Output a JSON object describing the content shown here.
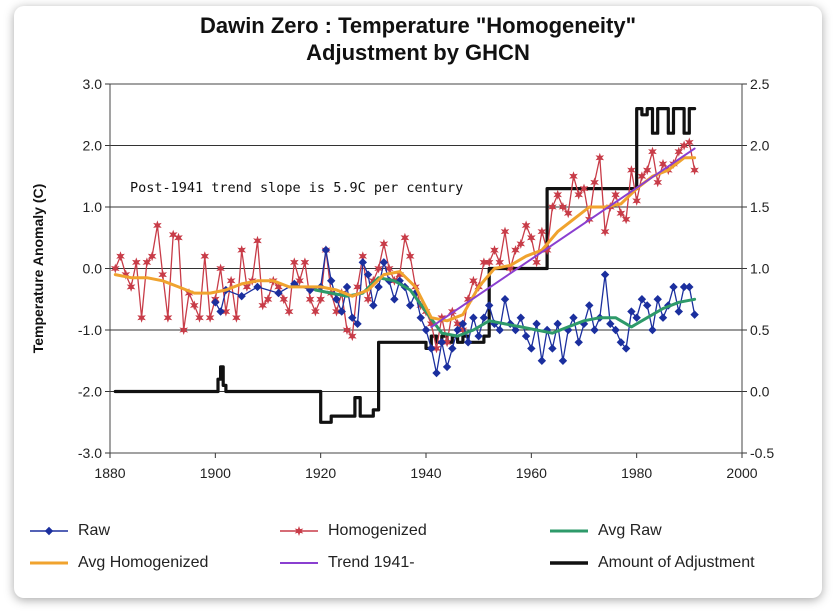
{
  "chart_data": {
    "type": "line",
    "title": "Dawin Zero  :  Temperature \"Homogeneity\"\nAdjustment by GHCN",
    "ylabel": "Temperature Anomaly (C)",
    "xlim": [
      1880,
      2000
    ],
    "x_ticks": [
      "1880",
      "1900",
      "1920",
      "1940",
      "1960",
      "1980",
      "2000"
    ],
    "ylim": [
      -3.0,
      3.0
    ],
    "y_ticks": [
      "-3.0",
      "-2.0",
      "-1.0",
      "0.0",
      "1.0",
      "2.0",
      "3.0"
    ],
    "y2lim": [
      -0.5,
      2.5
    ],
    "y2_ticks": [
      "-0.5",
      "0.0",
      "0.5",
      "1.0",
      "1.5",
      "2.0",
      "2.5"
    ],
    "grid": "horizontal",
    "annotation": "Post-1941 trend slope is 5.9C per century",
    "legend_position": "bottom",
    "series": [
      {
        "name": "Raw",
        "color": "#1b2f9e",
        "marker": "diamond",
        "axis": "left",
        "x": [
          1900,
          1901,
          1902,
          1905,
          1908,
          1912,
          1915,
          1918,
          1920,
          1921,
          1922,
          1923,
          1924,
          1925,
          1926,
          1927,
          1928,
          1929,
          1930,
          1931,
          1932,
          1933,
          1934,
          1935,
          1936,
          1937,
          1938,
          1939,
          1940,
          1941,
          1942,
          1943,
          1944,
          1945,
          1946,
          1947,
          1948,
          1949,
          1950,
          1951,
          1952,
          1953,
          1954,
          1955,
          1956,
          1957,
          1958,
          1959,
          1960,
          1961,
          1962,
          1963,
          1964,
          1965,
          1966,
          1967,
          1968,
          1969,
          1970,
          1971,
          1972,
          1973,
          1974,
          1975,
          1976,
          1977,
          1978,
          1979,
          1980,
          1981,
          1982,
          1983,
          1984,
          1985,
          1986,
          1987,
          1988,
          1989,
          1990,
          1991
        ],
        "y": [
          -0.55,
          -0.7,
          -0.35,
          -0.45,
          -0.3,
          -0.4,
          -0.25,
          -0.35,
          -0.3,
          0.3,
          -0.2,
          -0.5,
          -0.7,
          -0.3,
          -0.8,
          -0.9,
          0.1,
          -0.1,
          -0.6,
          -0.3,
          0.1,
          -0.2,
          -0.5,
          -0.2,
          -0.3,
          -0.6,
          -0.4,
          -0.8,
          -1.0,
          -1.3,
          -1.7,
          -1.2,
          -1.6,
          -1.3,
          -1.0,
          -0.9,
          -1.2,
          -0.8,
          -1.1,
          -0.8,
          -0.6,
          -0.9,
          -1.0,
          -0.5,
          -0.9,
          -1.0,
          -0.8,
          -1.1,
          -1.3,
          -0.9,
          -1.5,
          -1.0,
          -1.3,
          -0.9,
          -1.5,
          -1.0,
          -0.8,
          -1.2,
          -0.9,
          -0.6,
          -1.0,
          -0.8,
          -0.1,
          -0.9,
          -1.0,
          -1.2,
          -1.3,
          -0.7,
          -0.8,
          -0.5,
          -0.6,
          -1.0,
          -0.5,
          -0.8,
          -0.6,
          -0.3,
          -0.7,
          -0.3,
          -0.3,
          -0.75
        ]
      },
      {
        "name": "Homogenized",
        "color": "#c83c48",
        "marker": "star",
        "axis": "left",
        "x": [
          1881,
          1882,
          1883,
          1884,
          1885,
          1886,
          1887,
          1888,
          1889,
          1890,
          1891,
          1892,
          1893,
          1894,
          1895,
          1896,
          1897,
          1898,
          1899,
          1900,
          1901,
          1902,
          1903,
          1904,
          1905,
          1906,
          1907,
          1908,
          1909,
          1910,
          1911,
          1912,
          1913,
          1914,
          1915,
          1916,
          1917,
          1918,
          1919,
          1920,
          1921,
          1922,
          1923,
          1924,
          1925,
          1926,
          1927,
          1928,
          1929,
          1930,
          1931,
          1932,
          1933,
          1934,
          1935,
          1936,
          1937,
          1938,
          1939,
          1940,
          1941,
          1942,
          1943,
          1944,
          1945,
          1946,
          1947,
          1948,
          1949,
          1950,
          1951,
          1952,
          1953,
          1954,
          1955,
          1956,
          1957,
          1958,
          1959,
          1960,
          1961,
          1962,
          1963,
          1964,
          1965,
          1966,
          1967,
          1968,
          1969,
          1970,
          1971,
          1972,
          1973,
          1974,
          1975,
          1976,
          1977,
          1978,
          1979,
          1980,
          1981,
          1982,
          1983,
          1984,
          1985,
          1986,
          1987,
          1988,
          1989,
          1990,
          1991
        ],
        "y": [
          0.0,
          0.2,
          -0.1,
          -0.3,
          0.1,
          -0.8,
          0.1,
          0.2,
          0.7,
          -0.1,
          -0.8,
          0.55,
          0.5,
          -1.0,
          -0.4,
          -0.6,
          -0.8,
          0.2,
          -0.8,
          -0.5,
          0.0,
          -0.7,
          -0.2,
          -0.8,
          0.3,
          -0.3,
          -0.2,
          0.45,
          -0.6,
          -0.5,
          -0.2,
          -0.3,
          -0.5,
          -0.7,
          0.1,
          -0.2,
          0.1,
          -0.5,
          -0.7,
          -0.5,
          0.3,
          -0.4,
          -0.7,
          -0.4,
          -1.0,
          -1.1,
          -0.3,
          0.2,
          -0.5,
          -0.2,
          0.0,
          0.4,
          0.0,
          -0.2,
          -0.1,
          0.5,
          0.2,
          -0.3,
          -0.6,
          -0.7,
          -0.9,
          -1.3,
          -0.8,
          -1.2,
          -0.7,
          -0.9,
          -1.0,
          -0.5,
          -0.2,
          -0.3,
          0.1,
          0.1,
          0.3,
          0.1,
          0.6,
          0.0,
          0.3,
          0.4,
          0.7,
          0.5,
          0.1,
          0.6,
          0.3,
          1.0,
          1.2,
          1.0,
          0.9,
          1.5,
          1.2,
          1.3,
          0.8,
          1.4,
          1.8,
          0.6,
          1.0,
          1.2,
          0.9,
          0.8,
          1.6,
          1.1,
          1.5,
          1.6,
          1.9,
          1.4,
          1.7,
          1.6,
          1.7,
          1.9,
          2.0,
          2.05,
          1.6
        ]
      },
      {
        "name": "Avg Raw",
        "color": "#2e9a6a",
        "axis": "left",
        "x": [
          1919,
          1922,
          1925,
          1928,
          1931,
          1934,
          1937,
          1940,
          1943,
          1946,
          1949,
          1952,
          1955,
          1958,
          1961,
          1964,
          1967,
          1970,
          1973,
          1976,
          1979,
          1982,
          1985,
          1988,
          1991
        ],
        "y": [
          -0.35,
          -0.4,
          -0.45,
          -0.4,
          -0.15,
          -0.2,
          -0.35,
          -0.7,
          -1.05,
          -1.1,
          -1.0,
          -0.85,
          -0.9,
          -0.95,
          -1.0,
          -1.05,
          -0.95,
          -0.85,
          -0.8,
          -0.8,
          -0.95,
          -0.8,
          -0.65,
          -0.55,
          -0.5
        ]
      },
      {
        "name": "Avg Homogenized",
        "color": "#f0a32e",
        "axis": "left",
        "x": [
          1881,
          1884,
          1887,
          1890,
          1893,
          1896,
          1899,
          1902,
          1905,
          1908,
          1911,
          1914,
          1917,
          1920,
          1923,
          1926,
          1929,
          1932,
          1935,
          1938,
          1941,
          1944,
          1947,
          1950,
          1953,
          1956,
          1959,
          1962,
          1965,
          1968,
          1971,
          1974,
          1977,
          1980,
          1983,
          1986,
          1989,
          1991
        ],
        "y": [
          -0.1,
          -0.15,
          -0.15,
          -0.2,
          -0.3,
          -0.4,
          -0.4,
          -0.35,
          -0.25,
          -0.2,
          -0.2,
          -0.3,
          -0.3,
          -0.3,
          -0.35,
          -0.45,
          -0.35,
          -0.1,
          -0.05,
          -0.3,
          -0.8,
          -0.85,
          -0.75,
          -0.3,
          0.0,
          0.05,
          0.2,
          0.3,
          0.6,
          0.8,
          1.0,
          1.0,
          1.05,
          1.3,
          1.5,
          1.6,
          1.8,
          1.8
        ]
      },
      {
        "name": "Trend 1941-",
        "color": "#8a3fd0",
        "axis": "left",
        "x": [
          1941,
          1991
        ],
        "y": [
          -0.95,
          1.95
        ]
      },
      {
        "name": "Amount of Adjustment",
        "color": "#111111",
        "axis": "right",
        "step": true,
        "x": [
          1881,
          1890,
          1895,
          1900,
          1900.5,
          1901,
          1901.5,
          1902,
          1919,
          1920,
          1922,
          1926,
          1926.5,
          1927,
          1927.5,
          1928,
          1929,
          1930,
          1931,
          1939,
          1940,
          1941,
          1942,
          1943,
          1944,
          1945,
          1946,
          1947,
          1948,
          1951,
          1952,
          1962,
          1963,
          1978,
          1979,
          1980,
          1981,
          1982,
          1983,
          1984,
          1985,
          1986,
          1987,
          1988,
          1989,
          1990,
          1991
        ],
        "y": [
          0.0,
          0.0,
          0.0,
          0.0,
          0.1,
          0.2,
          0.05,
          0.0,
          0.0,
          -0.25,
          -0.2,
          -0.2,
          -0.05,
          -0.05,
          -0.2,
          -0.2,
          -0.2,
          -0.15,
          0.4,
          0.4,
          0.35,
          0.45,
          0.4,
          0.45,
          0.4,
          0.45,
          0.4,
          0.45,
          0.4,
          0.45,
          1.0,
          1.0,
          1.65,
          1.65,
          1.65,
          2.3,
          2.25,
          2.3,
          2.1,
          2.3,
          2.3,
          2.1,
          2.3,
          2.3,
          2.1,
          2.3,
          2.3
        ]
      }
    ]
  }
}
